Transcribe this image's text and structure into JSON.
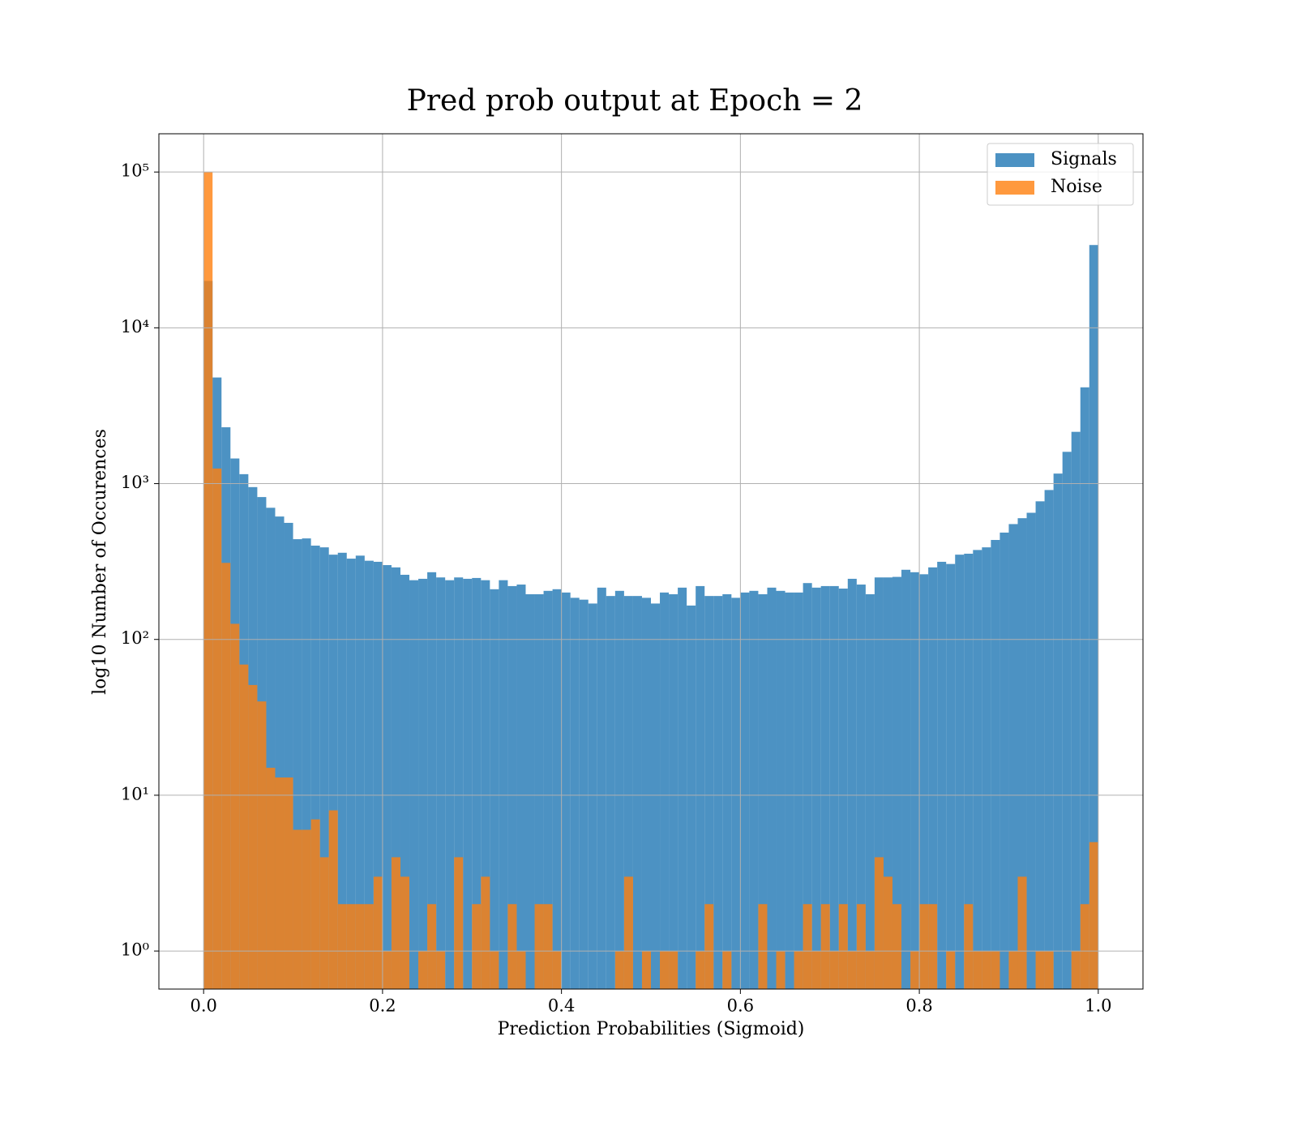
{
  "chart_data": {
    "type": "histogram",
    "title": "Pred prob output at Epoch = 2",
    "xlabel": "Prediction Probabilities (Sigmoid)",
    "ylabel": "log10 Number of Occurences",
    "bins": [
      0,
      0.01,
      0.02,
      0.03,
      0.04,
      0.05,
      0.06,
      0.07,
      0.08,
      0.09,
      0.1,
      0.11,
      0.12,
      0.13,
      0.14,
      0.15,
      0.16,
      0.17,
      0.18,
      0.19,
      0.2,
      0.21,
      0.22,
      0.23,
      0.24,
      0.25,
      0.26,
      0.27,
      0.28,
      0.29,
      0.3,
      0.31,
      0.32,
      0.33,
      0.34,
      0.35,
      0.36,
      0.37,
      0.38,
      0.39,
      0.4,
      0.41,
      0.42,
      0.43,
      0.44,
      0.45,
      0.46,
      0.47,
      0.48,
      0.49,
      0.5,
      0.51,
      0.52,
      0.53,
      0.54,
      0.55,
      0.56,
      0.57,
      0.58,
      0.59,
      0.6,
      0.61,
      0.62,
      0.63,
      0.64,
      0.65,
      0.66,
      0.67,
      0.68,
      0.69,
      0.7,
      0.71,
      0.72,
      0.73,
      0.74,
      0.75,
      0.76,
      0.77,
      0.78,
      0.79,
      0.8,
      0.81,
      0.82,
      0.83,
      0.84,
      0.85,
      0.86,
      0.87,
      0.88,
      0.89,
      0.9,
      0.91,
      0.92,
      0.93,
      0.94,
      0.95,
      0.96,
      0.97,
      0.98,
      0.99,
      1
    ],
    "series": [
      {
        "name": "Signals",
        "color": "#1f77b4",
        "values": [
          20000,
          4800,
          2300,
          1450,
          1150,
          950,
          820,
          700,
          615,
          560,
          440,
          445,
          400,
          390,
          350,
          360,
          330,
          345,
          320,
          315,
          300,
          290,
          260,
          240,
          245,
          270,
          250,
          240,
          250,
          245,
          248,
          240,
          210,
          240,
          220,
          225,
          195,
          195,
          205,
          210,
          200,
          185,
          180,
          170,
          215,
          190,
          205,
          190,
          190,
          185,
          170,
          200,
          195,
          215,
          165,
          220,
          190,
          190,
          195,
          185,
          200,
          205,
          195,
          215,
          205,
          200,
          200,
          230,
          215,
          220,
          220,
          212,
          245,
          225,
          195,
          250,
          250,
          252,
          280,
          270,
          262,
          290,
          315,
          305,
          350,
          355,
          375,
          390,
          435,
          485,
          550,
          600,
          650,
          770,
          910,
          1160,
          1600,
          2150,
          4150,
          34000
        ]
      },
      {
        "name": "Noise",
        "color": "#ff7f0e",
        "values": [
          100000,
          1250,
          310,
          126,
          69,
          51,
          40,
          15,
          13,
          13,
          6,
          6,
          7,
          4,
          8,
          2,
          2,
          2,
          2,
          3,
          1,
          4,
          3,
          0,
          1,
          2,
          1,
          0,
          4,
          0,
          2,
          3,
          1,
          0,
          2,
          1,
          0,
          2,
          2,
          1,
          0,
          0,
          0,
          0,
          0,
          0,
          1,
          3,
          0,
          1,
          0,
          1,
          1,
          0,
          0,
          1,
          2,
          0,
          1,
          0,
          0,
          0,
          2,
          0,
          1,
          0,
          1,
          2,
          1,
          2,
          1,
          2,
          1,
          2,
          1,
          4,
          3,
          2,
          0,
          1,
          2,
          2,
          0,
          1,
          0,
          2,
          1,
          1,
          1,
          0,
          1,
          3,
          0,
          1,
          1,
          0,
          0,
          1,
          2,
          5
        ]
      }
    ],
    "xlim": [
      -0.05,
      1.05
    ],
    "ylim": [
      0.57,
      176000
    ],
    "xticks": [
      {
        "value": 0,
        "label": "0.0"
      },
      0.2,
      0.4,
      0.6,
      0.8,
      {
        "value": 1,
        "label": "1.0"
      }
    ],
    "yticks": [
      {
        "value": 1,
        "label": "10⁰"
      },
      {
        "value": 10,
        "label": "10¹"
      },
      {
        "value": 100,
        "label": "10²"
      },
      {
        "value": 1000,
        "label": "10³"
      },
      {
        "value": 10000,
        "label": "10⁴"
      },
      {
        "value": 100000,
        "label": "10⁵"
      }
    ],
    "yscale": "log",
    "grid": true,
    "legend": "upper right"
  }
}
